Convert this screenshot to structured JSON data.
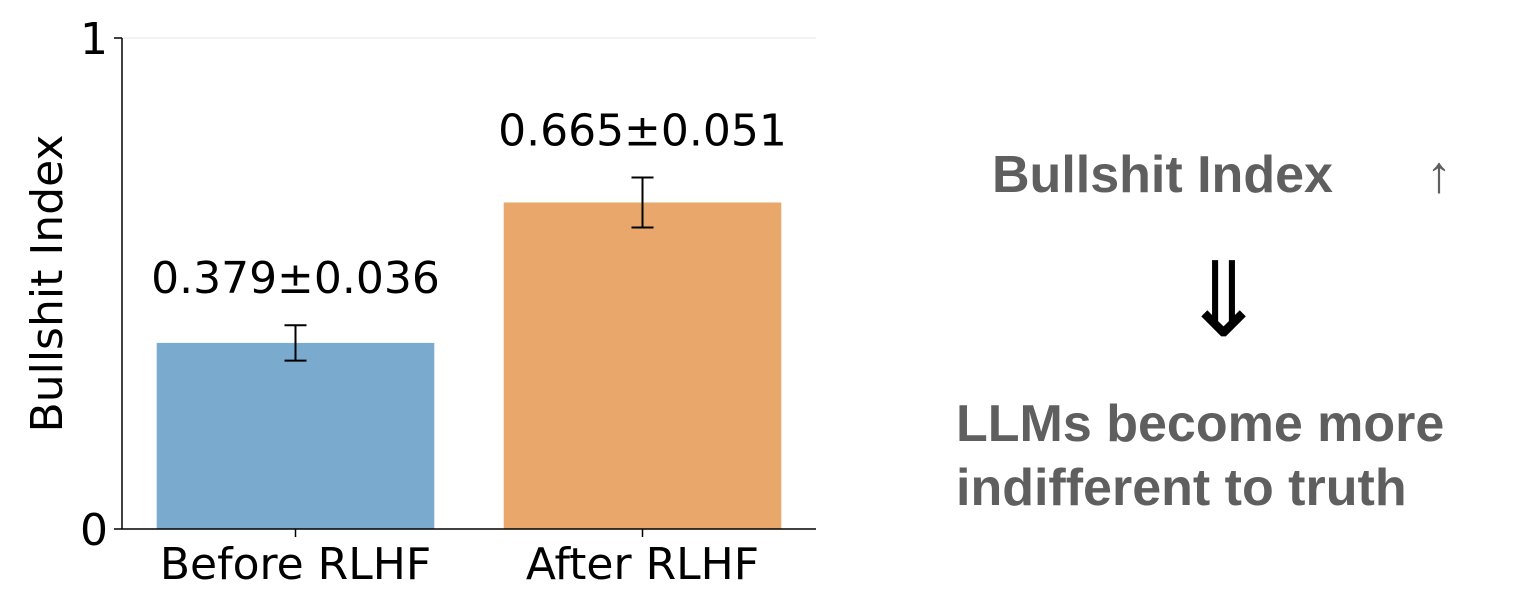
{
  "chart_data": {
    "type": "bar",
    "categories": [
      "Before RLHF",
      "After RLHF"
    ],
    "values": [
      0.379,
      0.665
    ],
    "errors": [
      0.036,
      0.051
    ],
    "value_labels": [
      "0.379±0.036",
      "0.665±0.051"
    ],
    "colors": [
      "#7aabcf",
      "#e9a76b"
    ],
    "title": "",
    "xlabel": "",
    "ylabel": "Bullshit Index",
    "ylim": [
      0,
      1
    ],
    "yticks": [
      0,
      1
    ],
    "ytick_labels": [
      "0",
      "1"
    ],
    "grid": false
  },
  "annotation": {
    "headline": "Bullshit Index",
    "arrow_up": "↑",
    "implies": "⇓",
    "conclusion_line1": "LLMs become more",
    "conclusion_line2": "indifferent to truth"
  }
}
